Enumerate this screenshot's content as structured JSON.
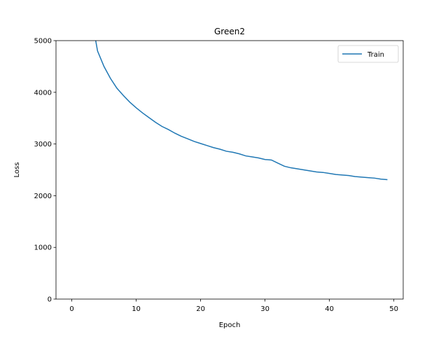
{
  "chart_data": {
    "type": "line",
    "title": "Green2",
    "x_label": "Epoch",
    "y_label": "Loss",
    "x": [
      3,
      4,
      5,
      6,
      7,
      8,
      9,
      10,
      11,
      12,
      13,
      14,
      15,
      16,
      17,
      18,
      19,
      20,
      21,
      22,
      23,
      24,
      25,
      26,
      27,
      28,
      29,
      30,
      31,
      32,
      33,
      34,
      35,
      36,
      37,
      38,
      39,
      40,
      41,
      42,
      43,
      44,
      45,
      46,
      47,
      48,
      49
    ],
    "series": [
      {
        "name": "Train",
        "color": "#1f77b4",
        "values": [
          5500,
          4800,
          4500,
          4270,
          4080,
          3940,
          3810,
          3700,
          3600,
          3510,
          3420,
          3340,
          3280,
          3210,
          3150,
          3100,
          3050,
          3010,
          2970,
          2930,
          2900,
          2860,
          2840,
          2810,
          2770,
          2750,
          2730,
          2700,
          2690,
          2630,
          2570,
          2540,
          2520,
          2500,
          2480,
          2460,
          2450,
          2430,
          2410,
          2400,
          2390,
          2370,
          2360,
          2350,
          2340,
          2320,
          2310
        ]
      }
    ],
    "xlim": [
      -2.45,
      51.45
    ],
    "ylim": [
      0,
      5000
    ],
    "xticks": [
      0,
      10,
      20,
      30,
      40,
      50
    ],
    "yticks": [
      0,
      1000,
      2000,
      3000,
      4000,
      5000
    ],
    "legend": "upper right",
    "grid": false
  }
}
